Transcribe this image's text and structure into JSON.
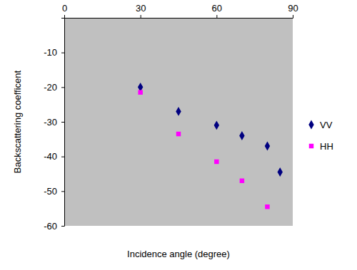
{
  "chart_data": {
    "type": "scatter",
    "x_label": "Incidence angle (degree)",
    "y_label": "Backscattering coefficent",
    "xlim": [
      0,
      90
    ],
    "xticks": [
      0,
      30,
      60,
      90
    ],
    "ylim": [
      -60,
      0
    ],
    "yticks": [
      -60,
      -50,
      -40,
      -30,
      -20,
      -10
    ],
    "grid": false,
    "legend": "right",
    "series": [
      {
        "name": "VV",
        "color": "#000080",
        "marker": "diamond",
        "x": [
          30,
          45,
          60,
          70,
          80,
          85
        ],
        "values": [
          -20,
          -27,
          -31,
          -34,
          -37,
          -44.5
        ]
      },
      {
        "name": "HH",
        "color": "#ff00ff",
        "marker": "square",
        "x": [
          30,
          45,
          60,
          70,
          80
        ],
        "values": [
          -21.5,
          -33.5,
          -41.5,
          -47,
          -54.5
        ]
      }
    ]
  }
}
